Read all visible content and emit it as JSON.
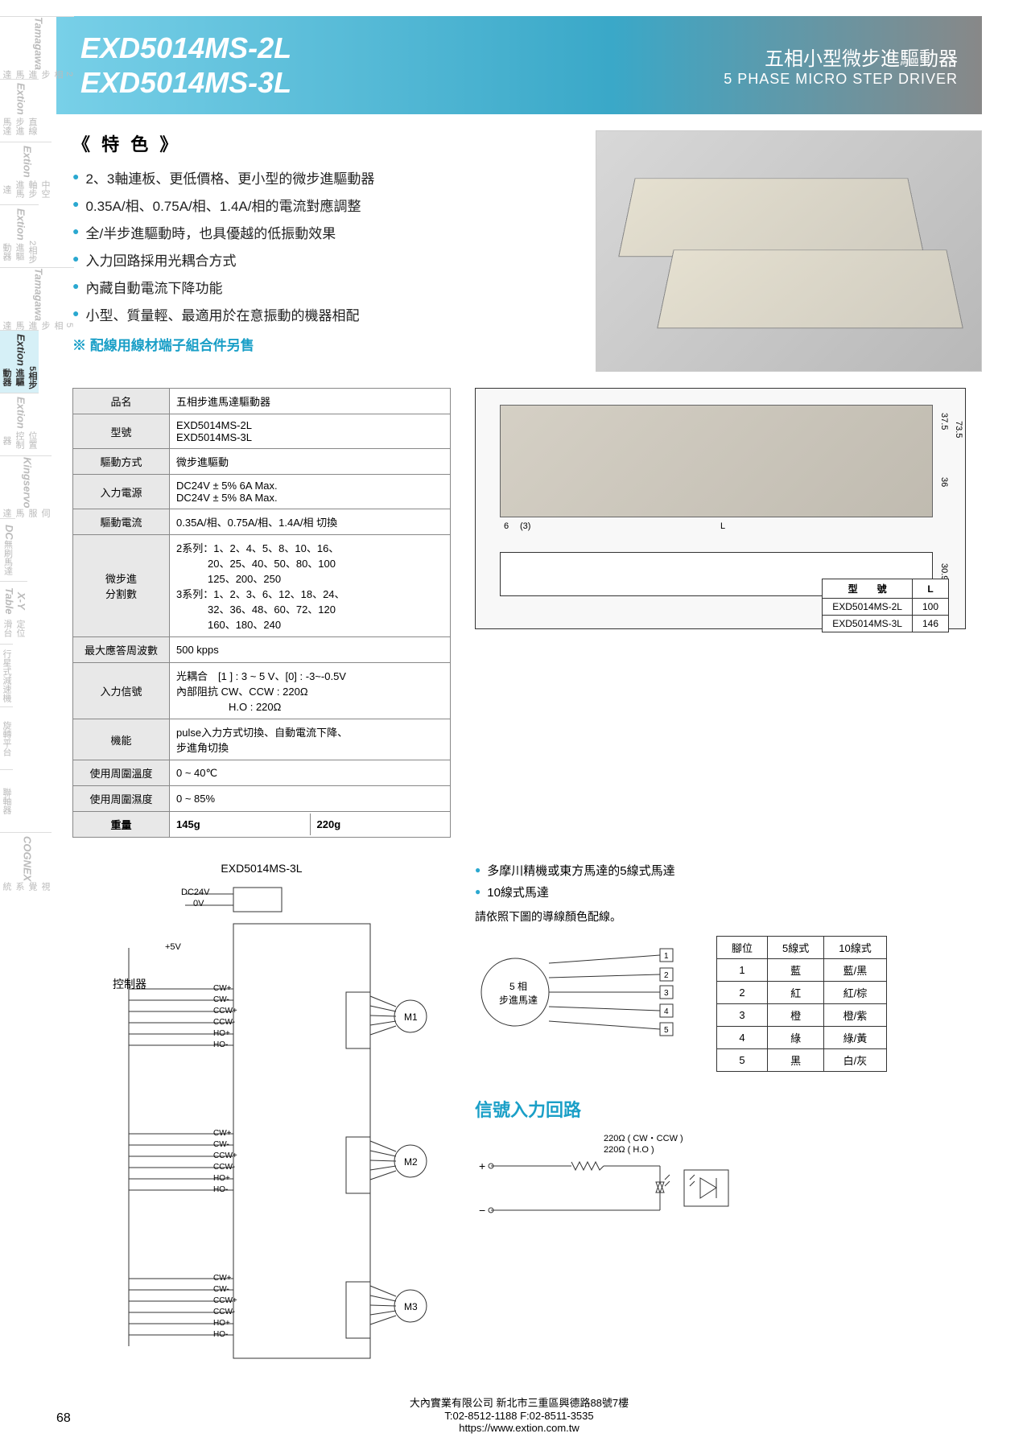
{
  "sidebar": {
    "tabs": [
      {
        "brand": "Tamagawa",
        "label": "2相步進馬達"
      },
      {
        "brand": "Extion",
        "label": "直線步進馬達"
      },
      {
        "brand": "Extion",
        "label": "中空軸步進馬達"
      },
      {
        "brand": "Extion",
        "label": "2相步進驅動器"
      },
      {
        "brand": "Tamagawa",
        "label": "5相步進馬達"
      },
      {
        "brand": "Extion",
        "label": "5相步進驅動器"
      },
      {
        "brand": "Extion",
        "label": "位置控制器"
      },
      {
        "brand": "Kingservo",
        "label": "伺服馬達"
      },
      {
        "brand": "DC",
        "label": "無刷馬達"
      },
      {
        "brand": "X-Y Table",
        "label": "定位滑台"
      },
      {
        "brand": "",
        "label": "行星式減速機"
      },
      {
        "brand": "",
        "label": "旋轉平台"
      },
      {
        "brand": "",
        "label": "聯軸器"
      },
      {
        "brand": "COGNEX",
        "label": "視覺系統"
      }
    ],
    "active_index": 5
  },
  "header": {
    "model1": "EXD5014MS-2L",
    "model2": "EXD5014MS-3L",
    "title_cn": "五相小型微步進驅動器",
    "title_en": "5 PHASE MICRO STEP DRIVER"
  },
  "features": {
    "title": "《 特 色 》",
    "items": [
      "2、3軸連板、更低價格、更小型的微步進驅動器",
      "0.35A/相、0.75A/相、1.4A/相的電流對應調整",
      "全/半步進驅動時，也具優越的低振動效果",
      "入力回路採用光耦合方式",
      "內藏自動電流下降功能",
      "小型、質量輕、最適用於在意振動的機器相配"
    ],
    "note": "※ 配線用線材端子組合件另售"
  },
  "spec_table": {
    "rows": [
      {
        "label": "品名",
        "value": "五相步進馬達驅動器"
      },
      {
        "label": "型號",
        "value": "EXD5014MS-2L\nEXD5014MS-3L"
      },
      {
        "label": "驅動方式",
        "value": "微步進驅動"
      },
      {
        "label": "入力電源",
        "value": "DC24V ± 5%  6A Max.\nDC24V ± 5%  8A Max."
      },
      {
        "label": "驅動電流",
        "value": "0.35A/相、0.75A/相、1.4A/相 切換"
      },
      {
        "label": "微步進\n分割數",
        "value": "2系列：1、2、4、5、8、10、16、\n　　　20、25、40、50、80、100\n　　　125、200、250\n3系列：1、2、3、6、12、18、24、\n　　　32、36、48、60、72、120\n　　　160、180、240"
      },
      {
        "label": "最大應答周波數",
        "value": "500 kpps"
      },
      {
        "label": "入力信號",
        "value": "光耦合　[1 ] : 3 ~ 5 V、[0] : -3~-0.5V\n內部阻抗 CW、CCW : 220Ω\n　　　　　H.O : 220Ω"
      },
      {
        "label": "機能",
        "value": "pulse入力方式切換、自動電流下降、\n步進角切換"
      },
      {
        "label": "使用周圍溫度",
        "value": "0 ~ 40℃"
      },
      {
        "label": "使用周圍濕度",
        "value": "0 ~ 85%"
      }
    ],
    "weight_row": {
      "label": "重量",
      "val1": "145g",
      "val2": "220g"
    }
  },
  "dim_table": {
    "header": {
      "c1": "型　　號",
      "c2": "L"
    },
    "rows": [
      {
        "model": "EXD5014MS-2L",
        "L": "100"
      },
      {
        "model": "EXD5014MS-3L",
        "L": "146"
      }
    ]
  },
  "dim_labels": {
    "h1": "37.5",
    "h2": "36",
    "h3": "73.5",
    "h4": "30.9",
    "w1": "6",
    "w2": "(3)",
    "w3": "L"
  },
  "wiring": {
    "title": "EXD5014MS-3L",
    "controller": "控制器",
    "power1": "DC24V",
    "power2": "0V",
    "v5": "+5V",
    "signals": [
      "CW+",
      "CW-",
      "CCW+",
      "CCW-",
      "HO+",
      "HO-"
    ],
    "motors": [
      "M1",
      "M2",
      "M3"
    ]
  },
  "motor_notes": {
    "n1": "多摩川精機或東方馬達的5線式馬達",
    "n2": "10線式馬達",
    "instruction": "請依照下圖的導線顏色配線。",
    "pin_label": "5 相\n步進馬達"
  },
  "pin_table": {
    "header": {
      "c1": "腳位",
      "c2": "5線式",
      "c3": "10線式"
    },
    "rows": [
      {
        "pin": "1",
        "w5": "藍",
        "w10": "藍/黑"
      },
      {
        "pin": "2",
        "w5": "紅",
        "w10": "紅/棕"
      },
      {
        "pin": "3",
        "w5": "橙",
        "w10": "橙/紫"
      },
      {
        "pin": "4",
        "w5": "綠",
        "w10": "綠/黃"
      },
      {
        "pin": "5",
        "w5": "黑",
        "w10": "白/灰"
      }
    ]
  },
  "signal": {
    "title": "信號入力回路",
    "r1": "220Ω ( CW・CCW )",
    "r2": "220Ω ( H.O )"
  },
  "footer": {
    "company": "大內實業有限公司 新北市三重區興德路88號7樓",
    "contact": "T:02-8512-1188  F:02-8511-3535",
    "url": "https://www.extion.com.tw"
  },
  "page_number": "68",
  "colors": {
    "accent": "#2aa8d0",
    "header_grad_start": "#78d0e8",
    "header_grad_end": "#888",
    "label_bg": "#e8e8e8"
  }
}
